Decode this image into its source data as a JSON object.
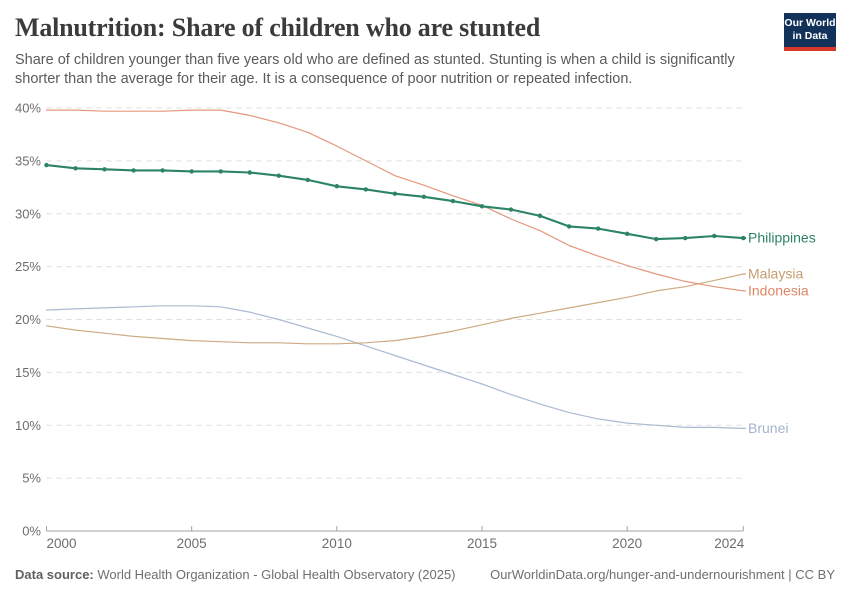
{
  "header": {
    "title": "Malnutrition: Share of children who are stunted",
    "subtitle": "Share of children younger than five years old who are defined as stunted. Stunting is when a child is significantly shorter than the average for their age. It is a consequence of poor nutrition or repeated infection.",
    "logo": {
      "line1": "Our World",
      "line2": "in Data",
      "bg_color": "#12325a",
      "accent_color": "#d7382a"
    }
  },
  "chart_data": {
    "type": "line",
    "title": "Malnutrition: Share of children who are stunted",
    "xlabel": "",
    "ylabel": "",
    "grid": true,
    "legend_position": "right-of-line-end-labels",
    "xlim": [
      2000,
      2024
    ],
    "ylim": [
      0,
      40
    ],
    "x": [
      2000,
      2001,
      2002,
      2003,
      2004,
      2005,
      2006,
      2007,
      2008,
      2009,
      2010,
      2011,
      2012,
      2013,
      2014,
      2015,
      2016,
      2017,
      2018,
      2019,
      2020,
      2021,
      2022,
      2023,
      2024
    ],
    "xticks": [
      {
        "value": 2000,
        "label": "2000"
      },
      {
        "value": 2005,
        "label": "2005"
      },
      {
        "value": 2010,
        "label": "2010"
      },
      {
        "value": 2015,
        "label": "2015"
      },
      {
        "value": 2020,
        "label": "2020"
      },
      {
        "value": 2024,
        "label": "2024"
      }
    ],
    "yticks": [
      {
        "value": 0,
        "label": "0%"
      },
      {
        "value": 5,
        "label": "5%"
      },
      {
        "value": 10,
        "label": "10%"
      },
      {
        "value": 15,
        "label": "15%"
      },
      {
        "value": 20,
        "label": "20%"
      },
      {
        "value": 25,
        "label": "25%"
      },
      {
        "value": 30,
        "label": "30%"
      },
      {
        "value": 35,
        "label": "35%"
      },
      {
        "value": 40,
        "label": "40%"
      }
    ],
    "series": [
      {
        "name": "Philippines",
        "color": "#2c8465",
        "line_width": 2.1,
        "markers": true,
        "opacity": 1,
        "values": [
          34.6,
          34.3,
          34.2,
          34.1,
          34.1,
          34.0,
          34.0,
          33.9,
          33.6,
          33.2,
          32.6,
          32.3,
          31.9,
          31.6,
          31.2,
          30.7,
          30.4,
          29.8,
          28.8,
          28.6,
          28.1,
          27.6,
          27.7,
          27.9,
          27.7
        ]
      },
      {
        "name": "Malaysia",
        "color": "#c69c6f",
        "line_width": 1.2,
        "markers": false,
        "opacity": 0.85,
        "values": [
          19.4,
          19.0,
          18.7,
          18.4,
          18.2,
          18.0,
          17.9,
          17.8,
          17.8,
          17.7,
          17.7,
          17.8,
          18.0,
          18.4,
          18.9,
          19.5,
          20.1,
          20.6,
          21.1,
          21.6,
          22.1,
          22.7,
          23.1,
          23.7,
          24.3
        ]
      },
      {
        "name": "Indonesia",
        "color": "#df8665",
        "line_width": 1.2,
        "markers": false,
        "opacity": 0.85,
        "values": [
          39.8,
          39.8,
          39.7,
          39.7,
          39.7,
          39.8,
          39.8,
          39.3,
          38.6,
          37.7,
          36.4,
          35.0,
          33.6,
          32.7,
          31.7,
          30.8,
          29.5,
          28.4,
          27.0,
          26.0,
          25.1,
          24.3,
          23.6,
          23.1,
          22.7
        ]
      },
      {
        "name": "Brunei",
        "color": "#a3b3cc",
        "line_width": 1.2,
        "markers": false,
        "opacity": 0.9,
        "values": [
          20.9,
          21.0,
          21.1,
          21.2,
          21.3,
          21.3,
          21.2,
          20.7,
          20.0,
          19.2,
          18.4,
          17.5,
          16.6,
          15.7,
          14.8,
          13.9,
          12.9,
          12.0,
          11.2,
          10.6,
          10.2,
          10.0,
          9.8,
          9.8,
          9.7
        ]
      }
    ],
    "style": {
      "gridline_color": "#dedede",
      "axis_color": "#a3a3a3",
      "tick_label_color": "#6e6e6e"
    }
  },
  "footer": {
    "datasource_label": "Data source:",
    "datasource_value": " World Health Organization - Global Health Observatory (2025)",
    "link": "OurWorldinData.org/hunger-and-undernourishment | CC BY"
  }
}
